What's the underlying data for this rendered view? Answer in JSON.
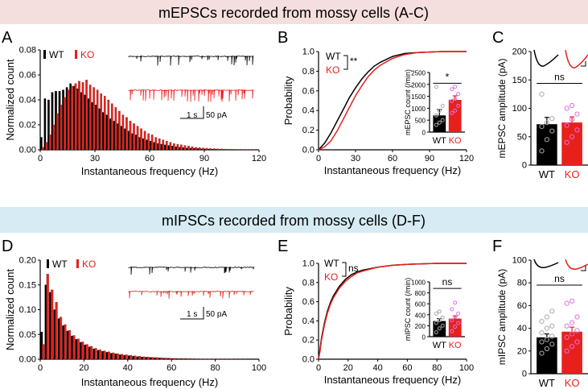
{
  "banners": {
    "top": {
      "text": "mEPSCs recorded from mossy cells (A-C)",
      "color": "#f5dede"
    },
    "bottom": {
      "text": "mIPSCs recorded from mossy cells (D-F)",
      "color": "#d6ebf3"
    }
  },
  "colors": {
    "wt": "#000000",
    "ko": "#e8201c"
  },
  "panel_letters": {
    "a": "A",
    "b": "B",
    "c": "C",
    "d": "D",
    "e": "E",
    "f": "F"
  },
  "legend": {
    "wt": "WT",
    "ko": "KO"
  },
  "scale_bars": {
    "time": "1 s",
    "amp": "50 pA"
  },
  "chart_data": [
    {
      "panel": "A",
      "type": "bar",
      "xlabel": "Instantaneous frequency (Hz)",
      "ylabel": "Normalized count",
      "xlim": [
        0,
        120
      ],
      "ylim": [
        0,
        0.08
      ],
      "bin_width_hz": 2,
      "xticks": [
        0,
        30,
        60,
        90,
        120
      ],
      "yticks": [
        "0.00",
        "0.02",
        "0.04",
        "0.06",
        "0.08"
      ],
      "series": [
        {
          "name": "WT",
          "values": [
            0.01,
            0.041,
            0.04,
            0.046,
            0.047,
            0.047,
            0.048,
            0.05,
            0.053,
            0.051,
            0.049,
            0.046,
            0.044,
            0.041,
            0.038,
            0.036,
            0.033,
            0.03,
            0.028,
            0.025,
            0.023,
            0.021,
            0.019,
            0.017,
            0.015,
            0.013,
            0.012,
            0.01,
            0.009,
            0.008,
            0.007,
            0.006,
            0.005,
            0.0045,
            0.004,
            0.0035,
            0.003,
            0.0025,
            0.002,
            0.0018,
            0.0015,
            0.0013,
            0.0011,
            0.001,
            0.0008,
            0.0007,
            0.0006,
            0.0005,
            0.0004,
            0.0003,
            0.0003,
            0.0002,
            0.0002,
            0.0002,
            0.0001,
            0.0001,
            0.0001,
            0.0001,
            0.0001,
            0.0001
          ]
        },
        {
          "name": "KO",
          "values": [
            0.002,
            0.006,
            0.012,
            0.02,
            0.029,
            0.036,
            0.042,
            0.048,
            0.051,
            0.053,
            0.055,
            0.054,
            0.056,
            0.052,
            0.05,
            0.048,
            0.045,
            0.043,
            0.04,
            0.037,
            0.034,
            0.031,
            0.028,
            0.026,
            0.023,
            0.021,
            0.019,
            0.017,
            0.015,
            0.013,
            0.012,
            0.01,
            0.009,
            0.008,
            0.007,
            0.006,
            0.005,
            0.0045,
            0.004,
            0.0035,
            0.003,
            0.0025,
            0.002,
            0.0018,
            0.0015,
            0.0013,
            0.0011,
            0.001,
            0.0008,
            0.0007,
            0.0006,
            0.0005,
            0.0004,
            0.0003,
            0.0003,
            0.0002,
            0.0002,
            0.0001,
            0.0001,
            0.0001
          ]
        }
      ]
    },
    {
      "panel": "B",
      "type": "line",
      "xlabel": "Instantaneous frequency (Hz)",
      "ylabel": "Probability",
      "xlim": [
        0,
        120
      ],
      "ylim": [
        0,
        1.0
      ],
      "xticks": [
        0,
        30,
        60,
        90,
        120
      ],
      "yticks": [
        "0.0",
        "0.2",
        "0.4",
        "0.6",
        "0.8",
        "1.0"
      ],
      "series": [
        {
          "name": "WT",
          "x": [
            0,
            5,
            10,
            15,
            20,
            25,
            30,
            35,
            40,
            45,
            50,
            60,
            70,
            80,
            100,
            120
          ],
          "y": [
            0,
            0.07,
            0.17,
            0.29,
            0.41,
            0.53,
            0.63,
            0.72,
            0.79,
            0.85,
            0.89,
            0.95,
            0.98,
            0.99,
            1.0,
            1.0
          ]
        },
        {
          "name": "KO",
          "x": [
            0,
            5,
            10,
            15,
            20,
            25,
            30,
            35,
            40,
            45,
            50,
            60,
            70,
            80,
            100,
            120
          ],
          "y": [
            0,
            0.03,
            0.09,
            0.19,
            0.31,
            0.43,
            0.55,
            0.65,
            0.74,
            0.81,
            0.86,
            0.93,
            0.97,
            0.99,
            1.0,
            1.0
          ]
        }
      ],
      "annotation": "**",
      "inset": {
        "type": "bar",
        "ylabel": "mEPSC count (/min)",
        "ylim": [
          0,
          2500
        ],
        "yticks": [
          "0",
          "500",
          "1000",
          "1500",
          "2000",
          "2500"
        ],
        "categories": [
          "WT",
          "KO"
        ],
        "values": [
          700,
          1350
        ],
        "errors": [
          250,
          170
        ],
        "points": {
          "WT": [
            300,
            400,
            500,
            700,
            900,
            1100,
            1900
          ],
          "KO": [
            800,
            900,
            1100,
            1300,
            1400,
            1600,
            1800,
            1900
          ]
        },
        "annotation": "*"
      }
    },
    {
      "panel": "C",
      "type": "bar",
      "ylabel": "mEPSC amplitude (pA)",
      "ylim": [
        0,
        200
      ],
      "yticks": [
        "0",
        "50",
        "100",
        "150",
        "200"
      ],
      "categories": [
        "WT",
        "KO"
      ],
      "values": [
        72,
        75
      ],
      "errors": [
        12,
        10
      ],
      "points": {
        "WT": [
          25,
          45,
          60,
          68,
          75,
          82,
          125
        ],
        "KO": [
          40,
          50,
          62,
          70,
          80,
          90,
          100,
          105
        ]
      },
      "annotation": "ns"
    },
    {
      "panel": "D",
      "type": "bar",
      "xlabel": "Instantaneous frequency (Hz)",
      "ylabel": "Normalized count",
      "xlim": [
        0,
        100
      ],
      "ylim": [
        0,
        0.2
      ],
      "bin_width_hz": 2,
      "xticks": [
        0,
        20,
        40,
        60,
        80,
        100
      ],
      "yticks": [
        "0.00",
        "0.05",
        "0.10",
        "0.15",
        "0.20"
      ],
      "series": [
        {
          "name": "WT",
          "values": [
            0.055,
            0.15,
            0.135,
            0.1,
            0.082,
            0.068,
            0.057,
            0.047,
            0.04,
            0.034,
            0.029,
            0.025,
            0.021,
            0.018,
            0.016,
            0.014,
            0.012,
            0.011,
            0.009,
            0.008,
            0.007,
            0.006,
            0.005,
            0.0045,
            0.004,
            0.0035,
            0.003,
            0.0025,
            0.002,
            0.0018,
            0.0015,
            0.0013,
            0.0011,
            0.001,
            0.0008,
            0.0007,
            0.0006,
            0.0005,
            0.0004,
            0.0003,
            0.0003,
            0.0002,
            0.0002,
            0.0001,
            0.0001,
            0.0001,
            0.0001
          ]
        },
        {
          "name": "KO",
          "values": [
            0.03,
            0.172,
            0.14,
            0.115,
            0.085,
            0.07,
            0.058,
            0.048,
            0.041,
            0.035,
            0.03,
            0.026,
            0.022,
            0.019,
            0.017,
            0.015,
            0.013,
            0.011,
            0.01,
            0.009,
            0.008,
            0.007,
            0.006,
            0.005,
            0.0045,
            0.004,
            0.0035,
            0.003,
            0.0025,
            0.002,
            0.0018,
            0.0015,
            0.0013,
            0.0011,
            0.001,
            0.0008,
            0.0007,
            0.0006,
            0.0005,
            0.0004,
            0.0003,
            0.0003,
            0.0002,
            0.0002,
            0.0001,
            0.0001,
            0.0001
          ]
        }
      ]
    },
    {
      "panel": "E",
      "type": "line",
      "xlabel": "Instantaneous frequency (Hz)",
      "ylabel": "Probability",
      "xlim": [
        0,
        100
      ],
      "ylim": [
        0,
        1.0
      ],
      "xticks": [
        0,
        20,
        40,
        60,
        80,
        100
      ],
      "yticks": [
        "0.0",
        "0.2",
        "0.4",
        "0.6",
        "0.8",
        "1.0"
      ],
      "series": [
        {
          "name": "WT",
          "x": [
            0,
            1,
            2,
            4,
            6,
            8,
            10,
            14,
            18,
            22,
            26,
            30,
            40,
            50,
            60,
            80,
            100
          ],
          "y": [
            0,
            0.1,
            0.22,
            0.38,
            0.5,
            0.59,
            0.66,
            0.76,
            0.83,
            0.88,
            0.91,
            0.93,
            0.96,
            0.98,
            0.99,
            1.0,
            1.0
          ]
        },
        {
          "name": "KO",
          "x": [
            0,
            1,
            2,
            4,
            6,
            8,
            10,
            14,
            18,
            22,
            26,
            30,
            40,
            50,
            60,
            80,
            100
          ],
          "y": [
            0,
            0.08,
            0.2,
            0.36,
            0.48,
            0.57,
            0.64,
            0.74,
            0.81,
            0.86,
            0.9,
            0.92,
            0.96,
            0.98,
            0.99,
            1.0,
            1.0
          ]
        }
      ],
      "annotation": "ns",
      "inset": {
        "type": "bar",
        "ylabel": "mIPSC count (/min)",
        "ylim": [
          0,
          1000
        ],
        "yticks": [
          "0",
          "200",
          "400",
          "600",
          "800",
          "1000"
        ],
        "categories": [
          "WT",
          "KO"
        ],
        "values": [
          285,
          330
        ],
        "errors": [
          45,
          50
        ],
        "points": {
          "WT": [
            80,
            150,
            200,
            250,
            300,
            350,
            420,
            460
          ],
          "KO": [
            100,
            180,
            250,
            300,
            360,
            420,
            500,
            620
          ]
        },
        "annotation": "ns"
      }
    },
    {
      "panel": "F",
      "type": "bar",
      "ylabel": "mIPSC amplitude (pA)",
      "ylim": [
        0,
        100
      ],
      "yticks": [
        "0",
        "20",
        "40",
        "60",
        "80",
        "100"
      ],
      "categories": [
        "WT",
        "KO"
      ],
      "values": [
        32,
        37
      ],
      "errors": [
        3,
        4
      ],
      "points": {
        "WT": [
          18,
          22,
          26,
          28,
          30,
          33,
          36,
          40,
          42,
          46,
          50,
          55
        ],
        "KO": [
          20,
          24,
          28,
          32,
          35,
          38,
          42,
          45,
          50,
          62,
          64
        ]
      },
      "annotation": "ns"
    }
  ]
}
